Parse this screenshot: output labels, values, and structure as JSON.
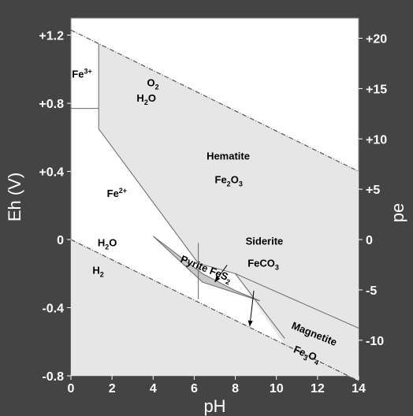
{
  "chart_data": {
    "type": "eh-ph-diagram",
    "xlabel": "pH",
    "ylabel": "Eh (V)",
    "y2label": "pe",
    "xlim": [
      0,
      14
    ],
    "ylim": [
      -0.8,
      1.3
    ],
    "x_ticks": [
      "0",
      "2",
      "4",
      "6",
      "8",
      "10",
      "12",
      "14"
    ],
    "y_ticks": [
      "-0.8",
      "-0.4",
      "0",
      "+0.4",
      "+0.8",
      "+1.2"
    ],
    "pe_ticks": [
      "-10",
      "-5",
      "0",
      "+5",
      "+10",
      "+15",
      "+20"
    ],
    "colors": {
      "background": "#444444",
      "plot": "#ffffff",
      "stability_field": "#e6e6e6",
      "pyrite_field": "#c8c8c8"
    },
    "water_lines": {
      "upper": {
        "points": [
          [
            0,
            1.23
          ],
          [
            14,
            0.4
          ]
        ],
        "labels": [
          "O2",
          "H2O"
        ]
      },
      "lower": {
        "points": [
          [
            0,
            0.0
          ],
          [
            14,
            -0.83
          ]
        ],
        "labels": [
          "H2O",
          "H2"
        ]
      }
    },
    "fields": {
      "fe3": {
        "name": "Fe",
        "charge": "3+"
      },
      "fe2": {
        "name": "Fe",
        "charge": "2+"
      },
      "hematite": {
        "name": "Hematite",
        "formula_parts": [
          "Fe",
          "2",
          "O",
          "3"
        ]
      },
      "pyrite": {
        "name": "Pyrite FeS",
        "sub": "2"
      },
      "siderite": {
        "name": "Siderite",
        "formula_parts": [
          "FeCO",
          "3"
        ]
      },
      "magnetite": {
        "name": "Magnetite",
        "formula_parts": [
          "Fe",
          "3",
          "O",
          "4"
        ]
      }
    },
    "boundaries": {
      "fe3_fe2": [
        [
          0,
          0.77
        ],
        [
          1.35,
          0.77
        ]
      ],
      "fe3_hematite": [
        [
          1.35,
          0.77
        ],
        [
          1.35,
          1.15
        ]
      ],
      "hematite_lower": [
        [
          1.35,
          0.77
        ],
        [
          1.35,
          0.65
        ],
        [
          6.2,
          -0.14
        ],
        [
          8.0,
          -0.2
        ],
        [
          14,
          -0.52
        ]
      ],
      "siderite_left": [
        [
          6.2,
          -0.02
        ],
        [
          6.2,
          -0.35
        ]
      ],
      "siderite_magnetite": [
        [
          8.0,
          -0.2
        ],
        [
          10.4,
          -0.58
        ]
      ],
      "pyrite_field": [
        [
          4.0,
          0.02
        ],
        [
          6.4,
          -0.2
        ],
        [
          8.0,
          -0.3
        ],
        [
          9.2,
          -0.36
        ],
        [
          6.4,
          -0.25
        ]
      ],
      "arrows": [
        [
          [
            7.6,
            -0.15
          ],
          [
            7.0,
            -0.25
          ]
        ],
        [
          [
            8.9,
            -0.3
          ],
          [
            8.7,
            -0.51
          ]
        ]
      ]
    }
  }
}
